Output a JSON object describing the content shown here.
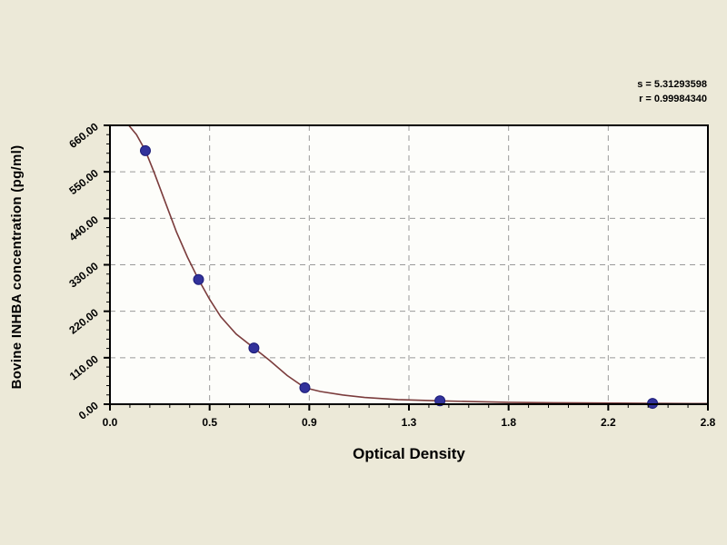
{
  "chart_data": {
    "type": "scatter",
    "title": "",
    "xlabel": "Optical Density",
    "ylabel": "Bovine INHBA concentration (pg/ml)",
    "x_tick_labels": [
      "0.0",
      "0.5",
      "0.9",
      "1.3",
      "1.8",
      "2.2",
      "2.8"
    ],
    "y_tick_labels": [
      "660.00",
      "550.00",
      "440.00",
      "330.00",
      "220.00",
      "110.00",
      "0.00"
    ],
    "xlim": [
      0,
      2.7
    ],
    "ylim": [
      0,
      660
    ],
    "grid": "dashed, at every labeled tick, gray",
    "legend": "none",
    "points": [
      {
        "od": 0.16,
        "conc": 600
      },
      {
        "od": 0.4,
        "conc": 295
      },
      {
        "od": 0.65,
        "conc": 133
      },
      {
        "od": 0.88,
        "conc": 39
      },
      {
        "od": 1.49,
        "conc": 8
      },
      {
        "od": 2.45,
        "conc": 2
      }
    ],
    "curve": [
      [
        0.085,
        660
      ],
      [
        0.12,
        638
      ],
      [
        0.16,
        600
      ],
      [
        0.2,
        548
      ],
      [
        0.25,
        478
      ],
      [
        0.3,
        408
      ],
      [
        0.35,
        348
      ],
      [
        0.4,
        295
      ],
      [
        0.45,
        248
      ],
      [
        0.5,
        207
      ],
      [
        0.57,
        166
      ],
      [
        0.65,
        133
      ],
      [
        0.72,
        104
      ],
      [
        0.8,
        68
      ],
      [
        0.88,
        39
      ],
      [
        0.95,
        30
      ],
      [
        1.05,
        22
      ],
      [
        1.15,
        16
      ],
      [
        1.3,
        11
      ],
      [
        1.49,
        8
      ],
      [
        1.65,
        6
      ],
      [
        1.8,
        4.5
      ],
      [
        2.0,
        3.5
      ],
      [
        2.2,
        2.8
      ],
      [
        2.45,
        2
      ],
      [
        2.7,
        1.6
      ]
    ],
    "annotations": {
      "s_label": "s = 5.31293598",
      "r_label": "r = 0.99984340"
    },
    "colors": {
      "background": "#ECE9D8",
      "plot_bg": "#FDFDFA",
      "curve": "#7B3C3C",
      "marker": "#32329B",
      "marker_edge": "#1C1C78",
      "grid": "#999999",
      "axis": "#000000"
    }
  }
}
